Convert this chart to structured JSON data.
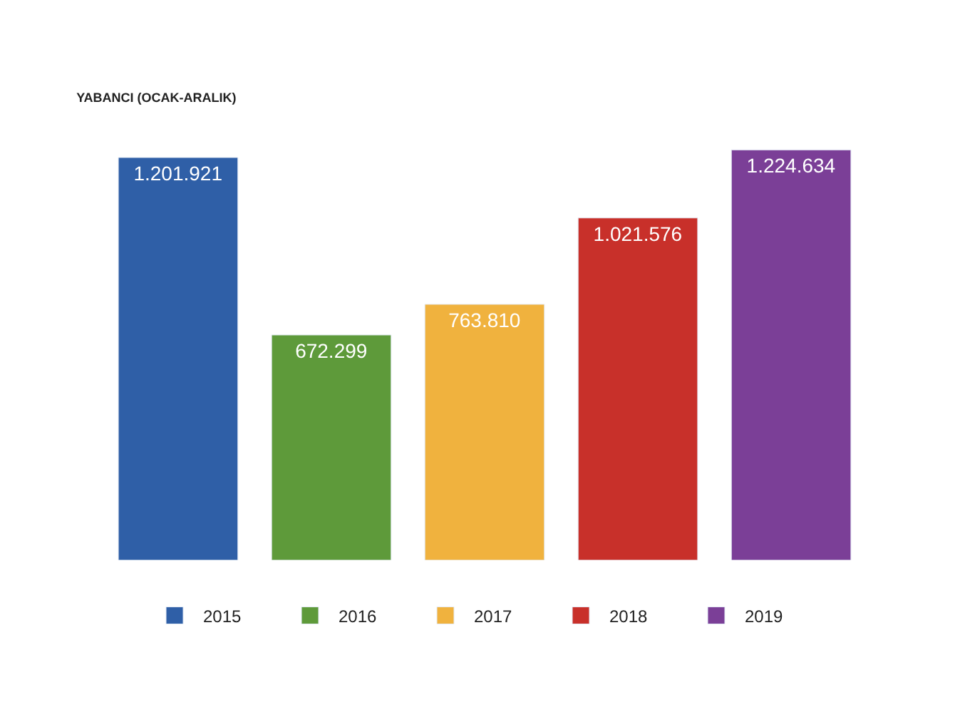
{
  "chart_data": {
    "type": "bar",
    "title": "YABANCI (OCAK-ARALIK)",
    "categories": [
      null
    ],
    "legend": "bottom",
    "series": [
      {
        "name": "2015",
        "color": "#2f5fa7",
        "values": [
          1201921
        ],
        "value_labels": [
          "1.201.921"
        ]
      },
      {
        "name": "2016",
        "color": "#5e9a3a",
        "values": [
          672299
        ],
        "value_labels": [
          "672.299"
        ]
      },
      {
        "name": "2017",
        "color": "#f0b23e",
        "values": [
          763810
        ],
        "value_labels": [
          "763.810"
        ]
      },
      {
        "name": "2018",
        "color": "#c8302a",
        "values": [
          1021576
        ],
        "value_labels": [
          "1.021.576"
        ]
      },
      {
        "name": "2019",
        "color": "#7b3f97",
        "values": [
          1224634
        ],
        "value_labels": [
          "1.224.634"
        ]
      }
    ]
  }
}
